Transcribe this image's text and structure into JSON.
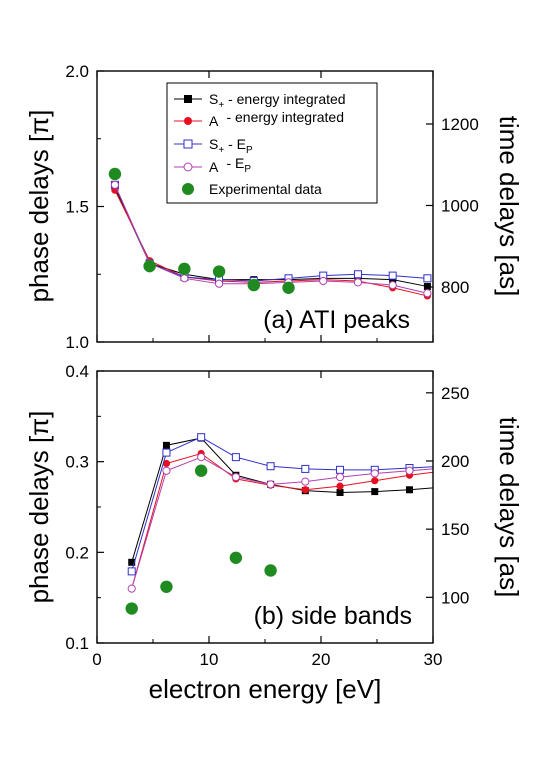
{
  "figure": {
    "xlabel": "electron energy [eV]",
    "x_ticks": [
      "0",
      "10",
      "20",
      "30"
    ]
  },
  "legend": {
    "s_energy": {
      "main": "S",
      "sub": "+",
      "rest": " - energy integrated"
    },
    "a_energy": {
      "main": "A",
      "sub": "",
      "rest": " - energy integrated"
    },
    "s_ep": {
      "main": "S",
      "sub": "+",
      "rest": " - E",
      "sub2": "P"
    },
    "a_ep": {
      "main": "A",
      "sub": "",
      "rest": " - E",
      "sub2": "P"
    },
    "experimental": {
      "label": "Experimental data"
    }
  },
  "colors": {
    "s_energy": "#000000",
    "a_energy": "#e8101e",
    "s_ep": "#3030c8",
    "a_ep": "#b040b0",
    "experimental": "#1f8a1f"
  },
  "chart_data": [
    {
      "type": "line",
      "panel_label": "(a) ATI peaks",
      "xlim": [
        0,
        30
      ],
      "ylim": [
        1.0,
        2.0
      ],
      "ylabel": "phase delays [π]",
      "y_ticks": [
        "1.0",
        "1.5",
        "2.0"
      ],
      "y2label": "time delays [as]",
      "y2_ticks": [
        {
          "label": "800",
          "value": 800
        },
        {
          "label": "1000",
          "value": 1000
        },
        {
          "label": "1200",
          "value": 1200
        }
      ],
      "y2_per_pi": 665,
      "series": [
        {
          "name": "S+ - energy integrated",
          "x": [
            1.6,
            4.7,
            7.8,
            10.9,
            14.0,
            17.1,
            20.2,
            23.3,
            26.4,
            29.5
          ],
          "y": [
            1.57,
            1.29,
            1.25,
            1.23,
            1.23,
            1.23,
            1.235,
            1.235,
            1.23,
            1.205
          ]
        },
        {
          "name": "A - energy integrated",
          "x": [
            1.6,
            4.7,
            7.8,
            10.9,
            14.0,
            17.1,
            20.2,
            23.3,
            26.4,
            29.5
          ],
          "y": [
            1.56,
            1.3,
            1.24,
            1.225,
            1.22,
            1.225,
            1.23,
            1.225,
            1.2,
            1.17
          ]
        },
        {
          "name": "S+ - EP",
          "x": [
            1.6,
            4.7,
            7.8,
            10.9,
            14.0,
            17.1,
            20.2,
            23.3,
            26.4,
            29.5
          ],
          "y": [
            1.58,
            1.29,
            1.24,
            1.23,
            1.225,
            1.235,
            1.245,
            1.25,
            1.245,
            1.235
          ]
        },
        {
          "name": "A - EP",
          "x": [
            1.6,
            4.7,
            7.8,
            10.9,
            14.0,
            17.1,
            20.2,
            23.3,
            26.4,
            29.5
          ],
          "y": [
            1.58,
            1.29,
            1.235,
            1.215,
            1.215,
            1.22,
            1.225,
            1.22,
            1.21,
            1.18
          ]
        },
        {
          "name": "Experimental data",
          "x": [
            1.6,
            4.7,
            7.8,
            10.9,
            14.0,
            17.1
          ],
          "y": [
            1.62,
            1.28,
            1.27,
            1.26,
            1.21,
            1.2
          ]
        }
      ]
    },
    {
      "type": "line",
      "panel_label": "(b) side bands",
      "xlim": [
        0,
        30
      ],
      "ylim": [
        0.1,
        0.4
      ],
      "ylabel": "phase delays [π]",
      "y_ticks": [
        "0.1",
        "0.2",
        "0.3",
        "0.4"
      ],
      "y2label": "time delays [as]",
      "y2_ticks": [
        {
          "label": "100",
          "value": 100
        },
        {
          "label": "150",
          "value": 150
        },
        {
          "label": "200",
          "value": 200
        },
        {
          "label": "250",
          "value": 250
        }
      ],
      "y2_per_pi": 665,
      "series": [
        {
          "name": "S+ - energy integrated",
          "x": [
            3.1,
            6.2,
            9.3,
            12.4,
            15.5,
            18.6,
            21.7,
            24.8,
            27.9,
            31.0
          ],
          "y": [
            0.189,
            0.318,
            0.326,
            0.285,
            0.275,
            0.268,
            0.266,
            0.267,
            0.269,
            0.272
          ]
        },
        {
          "name": "A - energy integrated",
          "x": [
            3.1,
            6.2,
            9.3,
            12.4,
            15.5,
            18.6,
            21.7,
            24.8,
            27.9,
            31.0
          ],
          "y": [
            0.16,
            0.298,
            0.309,
            0.281,
            0.274,
            0.269,
            0.273,
            0.279,
            0.285,
            0.29
          ]
        },
        {
          "name": "S+ - EP",
          "x": [
            3.1,
            6.2,
            9.3,
            12.4,
            15.5,
            18.6,
            21.7,
            24.8,
            27.9,
            31.0
          ],
          "y": [
            0.179,
            0.31,
            0.327,
            0.305,
            0.295,
            0.292,
            0.291,
            0.291,
            0.293,
            0.295
          ]
        },
        {
          "name": "A - EP",
          "x": [
            3.1,
            6.2,
            9.3,
            12.4,
            15.5,
            18.6,
            21.7,
            24.8,
            27.9,
            31.0
          ],
          "y": [
            0.16,
            0.29,
            0.305,
            0.283,
            0.275,
            0.278,
            0.283,
            0.287,
            0.29,
            0.293
          ]
        },
        {
          "name": "Experimental data",
          "x": [
            3.1,
            6.2,
            9.3,
            12.4,
            15.5
          ],
          "y": [
            0.138,
            0.162,
            0.29,
            0.194,
            0.18
          ]
        }
      ]
    }
  ]
}
